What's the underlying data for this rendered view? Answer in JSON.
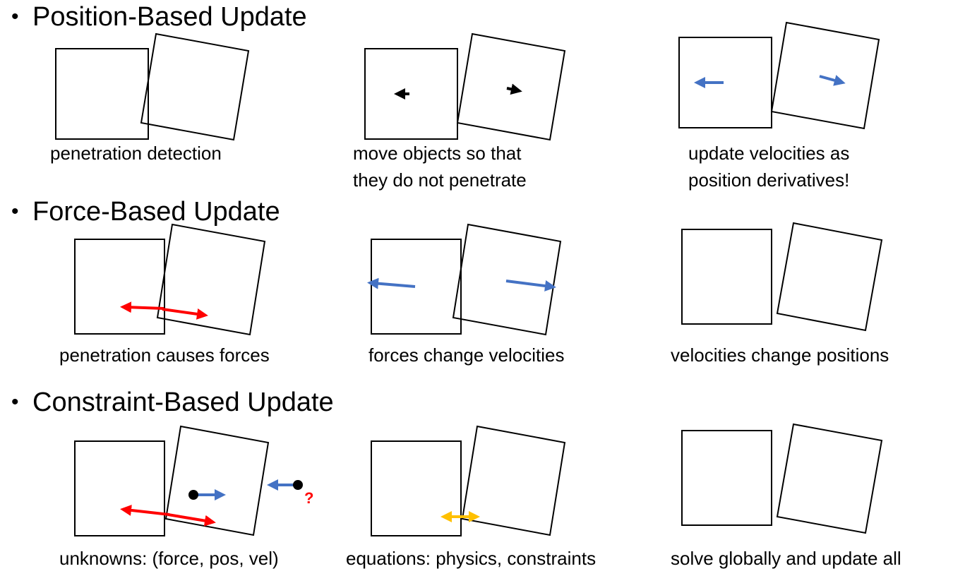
{
  "sections": [
    {
      "heading": "Position-Based Update",
      "bullet": "•",
      "captions": [
        "penetration detection",
        "move objects so that\nthey do not penetrate",
        "update velocities as\nposition derivatives!"
      ]
    },
    {
      "heading": "Force-Based Update",
      "bullet": "•",
      "captions": [
        "penetration causes forces",
        "forces change velocities",
        "velocities change positions"
      ]
    },
    {
      "heading": "Constraint-Based Update",
      "bullet": "•",
      "captions": [
        "unknowns: (force, pos, vel)",
        "equations: physics, constraints",
        "solve globally and update all"
      ]
    }
  ],
  "question_mark": "?",
  "colors": {
    "box_stroke": "#000000",
    "force_arrow": "#ff0000",
    "velocity_arrow": "#4472c4",
    "constraint_arrow": "#ffc000",
    "position_arrow": "#000000",
    "question_mark": "#ff0000"
  }
}
